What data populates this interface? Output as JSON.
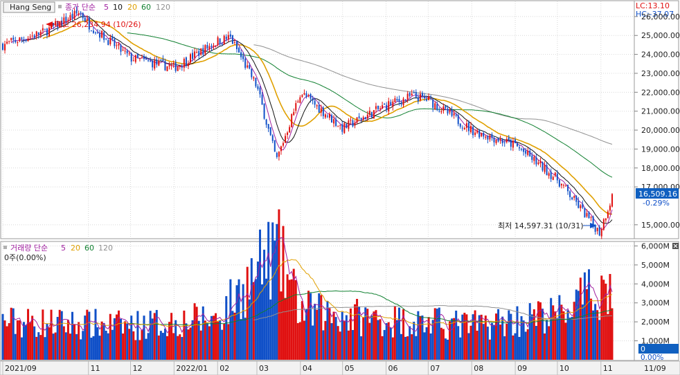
{
  "price_panel": {
    "symbol": "Hang Seng",
    "indicator_name": "종가 단순",
    "ma_periods": [
      "5",
      "10",
      "20",
      "60",
      "120"
    ],
    "ma_colors": [
      "#a020a0",
      "#101010",
      "#e0a000",
      "#108030",
      "#909090"
    ],
    "lc_label": "LC:13.10",
    "hc_label": "HC:-37.07",
    "current_value": "16,509.16",
    "current_change": "-0.29%",
    "high_label": "최고 26,234.94 (10/26)",
    "low_label": "최저 14,597.31 (10/31)",
    "y_ticks": [
      "26,000.00",
      "25,000.00",
      "24,000.00",
      "23,000.00",
      "22,000.00",
      "21,000.00",
      "20,000.00",
      "19,000.00",
      "18,000.00",
      "17,000.00",
      "15,000.00"
    ]
  },
  "volume_panel": {
    "indicator_name": "거래량 단순",
    "ma_periods": [
      "5",
      "20",
      "60",
      "120"
    ],
    "ma_colors": [
      "#a020a0",
      "#e0a000",
      "#108030",
      "#909090"
    ],
    "sub_label": "0주(0.00%)",
    "current_value": "0",
    "current_change": "0.00%",
    "y_ticks": [
      "6,000M",
      "5,000M",
      "4,000M",
      "3,000M",
      "2,000M",
      "1,000M"
    ]
  },
  "x_axis": {
    "labels": [
      "2021/09",
      "11",
      "12",
      "2022/01",
      "02",
      "03",
      "04",
      "05",
      "06",
      "07",
      "08",
      "09",
      "10",
      "11"
    ],
    "right_label": "11/09"
  },
  "colors": {
    "up": "#e01010",
    "down": "#1050c8",
    "grid": "#d8d8d8",
    "axis_text": "#202020",
    "current_box": "#1060c0"
  },
  "chart_data": {
    "type": "candlestick",
    "x_range": [
      "2021-09",
      "2022-11-09"
    ],
    "price_ylim": [
      14300,
      26800
    ],
    "volume_ylim_millions": [
      0,
      6200
    ],
    "price_anchors": [
      [
        "2021-09",
        24500
      ],
      [
        "2021-10",
        25200
      ],
      [
        "2021-10-26",
        26234.94
      ],
      [
        "2021-11",
        25600
      ],
      [
        "2021-12",
        23800
      ],
      [
        "2022-01",
        23300
      ],
      [
        "2022-02",
        24700
      ],
      [
        "2022-02-10",
        24900
      ],
      [
        "2022-03",
        22300
      ],
      [
        "2022-03-15",
        18400
      ],
      [
        "2022-04",
        22000
      ],
      [
        "2022-05",
        20100
      ],
      [
        "2022-06",
        21300
      ],
      [
        "2022-06-20",
        21800
      ],
      [
        "2022-07",
        21600
      ],
      [
        "2022-08",
        20000
      ],
      [
        "2022-09",
        19200
      ],
      [
        "2022-10",
        17400
      ],
      [
        "2022-10-31",
        14597.31
      ],
      [
        "2022-11-09",
        16509.16
      ]
    ],
    "volume_anchors_millions": [
      [
        "2021-09",
        2000
      ],
      [
        "2021-12",
        1800
      ],
      [
        "2022-02",
        2200
      ],
      [
        "2022-03-15",
        5800
      ],
      [
        "2022-04",
        2600
      ],
      [
        "2022-06",
        2100
      ],
      [
        "2022-08",
        1800
      ],
      [
        "2022-10",
        2400
      ],
      [
        "2022-11",
        3700
      ]
    ]
  }
}
